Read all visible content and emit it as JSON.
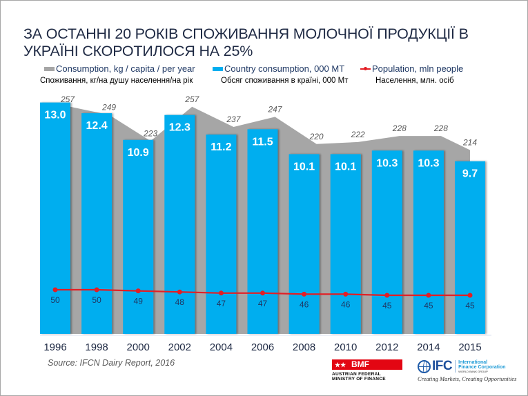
{
  "title": "ЗА ОСТАННІ 20 РОКІВ СПОЖИВАННЯ МОЛОЧНОЇ ПРОДУКЦІЇ В УКРАЇНІ СКОРОТИЛОСЯ НА 25%",
  "legend": [
    {
      "label": "Consumption, kg / capita / per year",
      "sublabel": "Споживання, кг/на душу населення/на рік",
      "color": "#a6a6a6",
      "icon": "gray-area-swatch"
    },
    {
      "label": "Country consumption, 000 MT",
      "sublabel": "Обсяг споживання в країні, 000 Мт",
      "color": "#00aeef",
      "icon": "blue-bar-swatch"
    },
    {
      "label": "Population, mln people",
      "sublabel": "Населення, млн. осіб",
      "color": "#e31e24",
      "icon": "red-line-marker-swatch"
    }
  ],
  "chart_data": {
    "type": "bar",
    "title": "ЗА ОСТАННІ 20 РОКІВ СПОЖИВАННЯ МОЛОЧНОЇ ПРОДУКЦІЇ В УКРАЇНІ СКОРОТИЛОСЯ НА 25%",
    "xlabel": "",
    "ylabel": "",
    "categories": [
      "1996",
      "1998",
      "2000",
      "2002",
      "2004",
      "2006",
      "2008",
      "2010",
      "2012",
      "2014",
      "2015"
    ],
    "series": [
      {
        "name": "Consumption, kg / capita / per year",
        "kind": "area",
        "color": "#a6a6a6",
        "values": [
          257,
          249,
          223,
          257,
          237,
          247,
          220,
          222,
          228,
          228,
          214
        ]
      },
      {
        "name": "Country consumption, 000 MT",
        "kind": "bar",
        "color": "#00aeef",
        "values": [
          13.0,
          12.4,
          10.9,
          12.3,
          11.2,
          11.5,
          10.1,
          10.1,
          10.3,
          10.3,
          9.7
        ]
      },
      {
        "name": "Population, mln people",
        "kind": "line",
        "color": "#e31e24",
        "values": [
          50,
          50,
          49,
          48,
          47,
          47,
          46,
          46,
          45,
          45,
          45
        ]
      }
    ],
    "grid": false,
    "legend_position": "top"
  },
  "source": "Source: IFCN Dairy Report, 2016",
  "logos": {
    "bmf": {
      "name": "BMF",
      "text_line1": "AUSTRIAN FEDERAL",
      "text_line2": "MINISTRY OF FINANCE"
    },
    "ifc": {
      "name": "IFC",
      "line1": "International",
      "line2": "Finance Corporation",
      "line3": "WORLD BANK GROUP",
      "tagline": "Creating Markets, Creating Opportunities"
    }
  }
}
